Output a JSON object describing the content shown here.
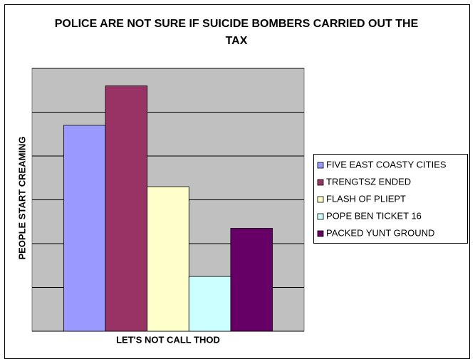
{
  "chart_data": {
    "type": "bar",
    "title": "POLICE ARE NOT SURE IF SUICIDE BOMBERS CARRIED OUT THE TAX",
    "y_label": "PEOPLE START CREAMING",
    "categories": [
      "LET'S NOT CALL THOD"
    ],
    "series": [
      {
        "name": "FIVE EAST COASTY CITIES",
        "color": "#9999ff",
        "values": [
          4.7
        ]
      },
      {
        "name": "TRENGTSZ ENDED",
        "color": "#993366",
        "values": [
          5.6
        ]
      },
      {
        "name": "FLASH OF PLIEPT",
        "color": "#ffffcc",
        "values": [
          3.3
        ]
      },
      {
        "name": "POPE BEN TICKET 16",
        "color": "#ccffff",
        "values": [
          1.25
        ]
      },
      {
        "name": "PACKED YUNT GROUND",
        "color": "#660066",
        "values": [
          2.35
        ]
      }
    ],
    "ylim": [
      0,
      6
    ],
    "yticks": [
      0,
      1,
      2,
      3,
      4,
      5,
      6
    ],
    "show_tick_labels": false,
    "grid": true,
    "plot_background": "#c0c0c0",
    "legend": "right"
  }
}
